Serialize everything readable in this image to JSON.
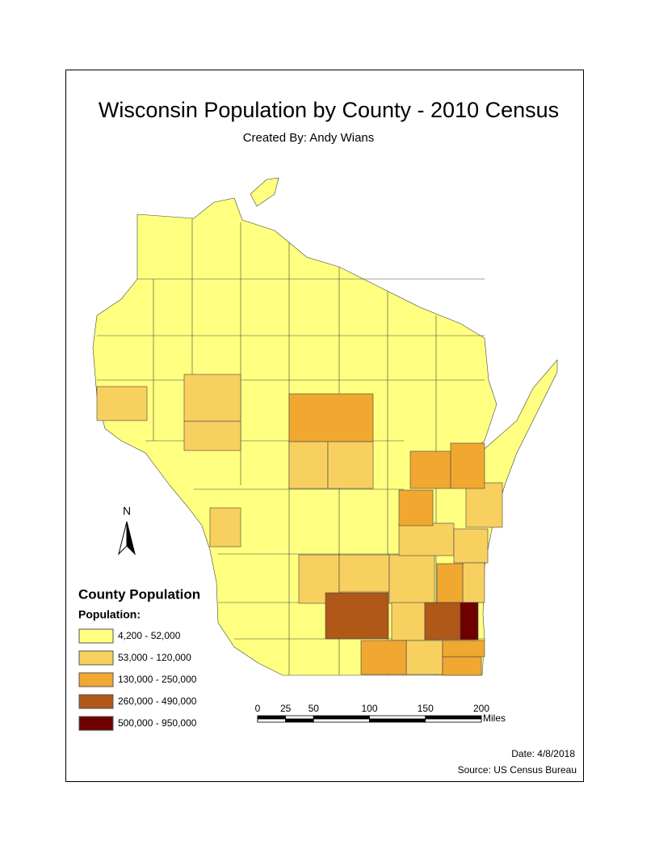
{
  "title": "Wisconsin Population by County - 2010 Census",
  "subtitle": "Created By: Andy Wians",
  "north_label": "N",
  "legend": {
    "title": "County Population",
    "subtitle": "Population:",
    "classes": [
      {
        "label": "4,200 - 52,000",
        "color": "#ffff80"
      },
      {
        "label": "53,000 - 120,000",
        "color": "#f8d060"
      },
      {
        "label": "130,000 - 250,000",
        "color": "#f0a830"
      },
      {
        "label": "260,000 - 490,000",
        "color": "#b05818"
      },
      {
        "label": "500,000 - 950,000",
        "color": "#700000"
      }
    ]
  },
  "scale_bar": {
    "ticks": [
      0,
      25,
      50,
      100,
      150,
      200
    ],
    "unit": "Miles"
  },
  "date": "Date: 4/8/2018",
  "source": "Source: US Census Bureau"
}
